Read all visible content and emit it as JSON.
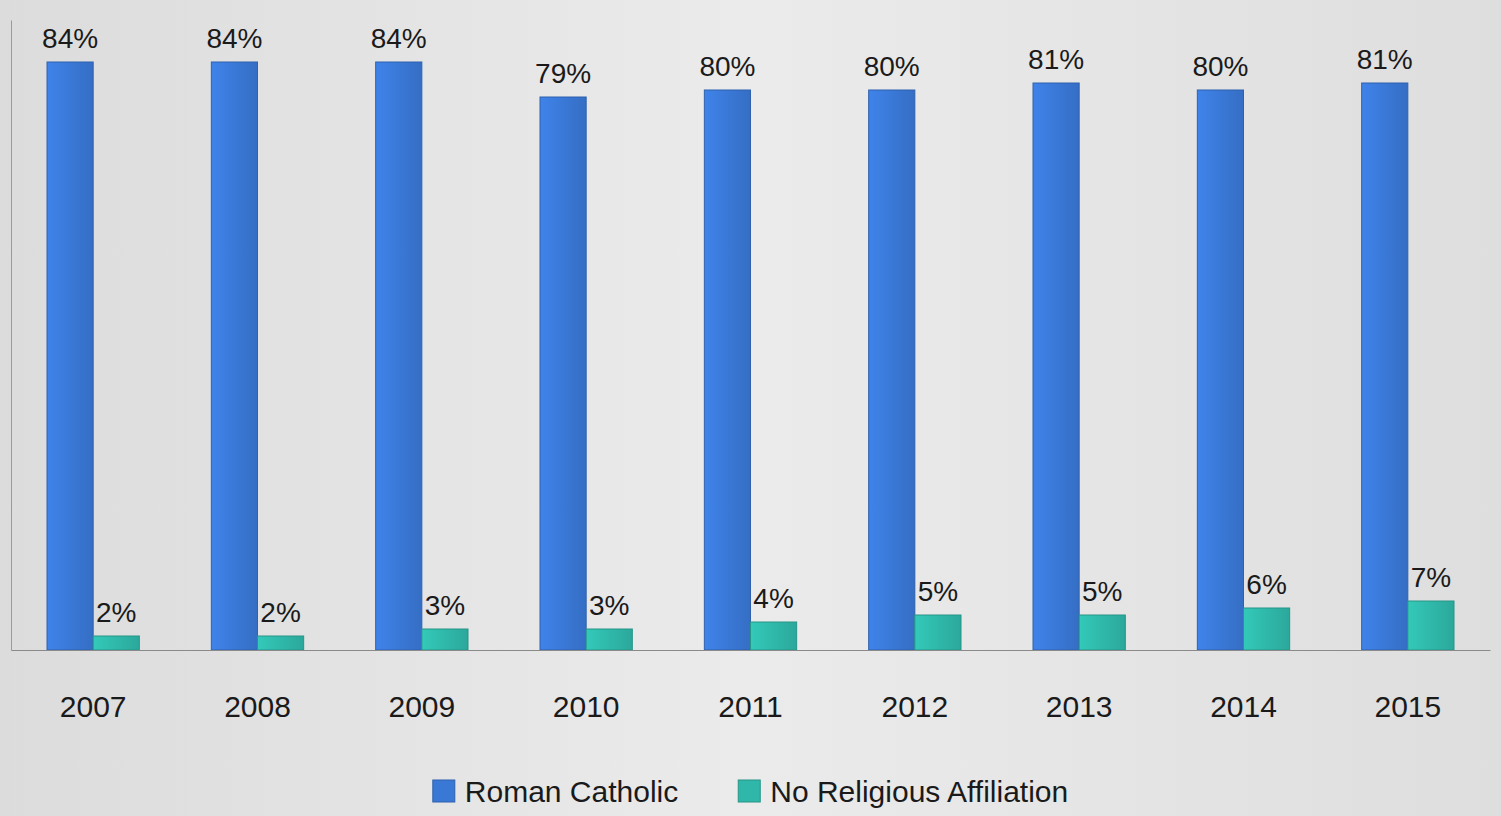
{
  "chart_data": {
    "type": "bar",
    "categories": [
      "2007",
      "2008",
      "2009",
      "2010",
      "2011",
      "2012",
      "2013",
      "2014",
      "2015"
    ],
    "series": [
      {
        "name": "Roman Catholic",
        "color": "#3a78d6",
        "values": [
          84,
          84,
          84,
          79,
          80,
          80,
          81,
          80,
          81
        ],
        "value_labels": [
          "84%",
          "84%",
          "84%",
          "79%",
          "80%",
          "80%",
          "81%",
          "80%",
          "81%"
        ]
      },
      {
        "name": "No Religious Affiliation",
        "color": "#2fb8a9",
        "values": [
          2,
          2,
          3,
          3,
          4,
          5,
          5,
          6,
          7
        ],
        "value_labels": [
          "2%",
          "2%",
          "3%",
          "3%",
          "4%",
          "5%",
          "5%",
          "6%",
          "7%"
        ]
      }
    ],
    "ylim": [
      0,
      90
    ],
    "data_labels": true,
    "tick_labels": "x",
    "legend": "bottom"
  }
}
